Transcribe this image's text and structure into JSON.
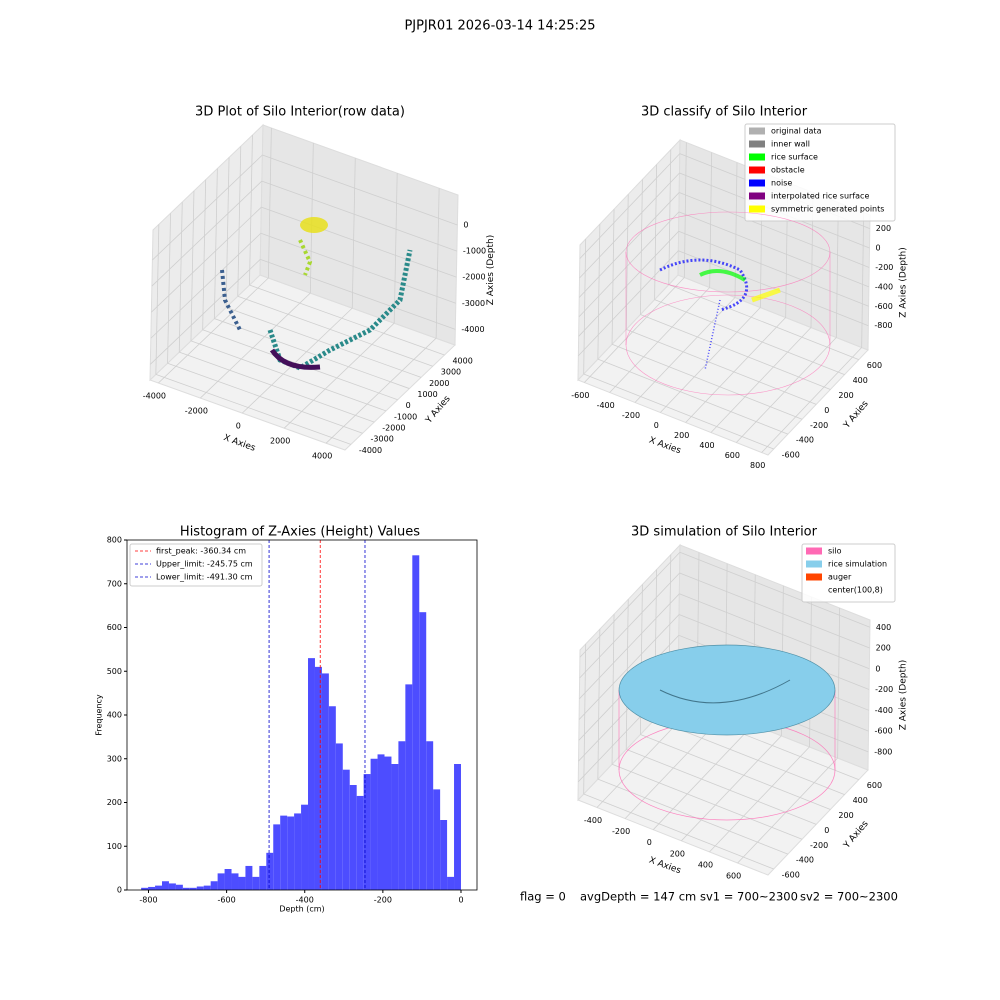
{
  "suptitle": "PJPJR01 2026-03-14 14:25:25",
  "chart_data": [
    {
      "type": "scatter3d",
      "title": "3D Plot of Silo Interior(row data)",
      "xlabel": "X Axies",
      "ylabel": "Y Axies",
      "zlabel": "Z Axies (Depth)",
      "xlim": [
        -4400,
        4900
      ],
      "ylim": [
        -4500,
        4900
      ],
      "zlim": [
        -4600,
        1150
      ],
      "xticks": [
        -4000,
        -2000,
        0,
        2000,
        4000
      ],
      "yticks": [
        -4000,
        -3000,
        -2000,
        -1000,
        0,
        1000,
        2000,
        3000,
        4000
      ],
      "zticks": [
        0,
        -1000,
        -2000,
        -3000,
        -4000
      ]
    },
    {
      "type": "scatter3d",
      "title": "3D classify of Silo Interior",
      "xlabel": "X Axies",
      "ylabel": "Y Axies",
      "zlabel": "Z Axies (Depth)",
      "xlim": [
        -650,
        850
      ],
      "ylim": [
        -680,
        730
      ],
      "zlim": [
        -1050,
        340
      ],
      "xticks": [
        -600,
        -400,
        -200,
        0,
        200,
        400,
        600,
        800
      ],
      "yticks": [
        -600,
        -400,
        -200,
        0,
        200,
        400,
        600
      ],
      "zticks": [
        200,
        0,
        -200,
        -400,
        -600,
        -800
      ],
      "legend": [
        {
          "name": "original data",
          "color": "#b0b0b0"
        },
        {
          "name": "inner wall",
          "color": "#808080"
        },
        {
          "name": "rice surface",
          "color": "#00ff00"
        },
        {
          "name": "obstacle",
          "color": "#ff0000"
        },
        {
          "name": "noise",
          "color": "#0000ff"
        },
        {
          "name": "interpolated rice surface",
          "color": "#800080"
        },
        {
          "name": "symmetric generated points",
          "color": "#ffff00"
        }
      ]
    },
    {
      "type": "histogram",
      "title": "Histogram of Z-Axies (Height) Values",
      "xlabel": "Depth (cm)",
      "ylabel": "Frequency",
      "xlim": [
        -855,
        41
      ],
      "ylim": [
        0,
        800
      ],
      "xticks": [
        -800,
        -600,
        -400,
        -200,
        0
      ],
      "yticks": [
        0,
        100,
        200,
        300,
        400,
        500,
        600,
        700,
        800
      ],
      "color": "#4d4dff",
      "bins": [
        -818.8,
        -801.0,
        -783.2,
        -765.4,
        -747.6,
        -729.8,
        -712.0,
        -694.2,
        -676.4,
        -658.6,
        -640.8,
        -623.0,
        -605.2,
        -587.4,
        -569.6,
        -551.8,
        -534.0,
        -516.2,
        -498.4,
        -480.6,
        -462.8,
        -445.0,
        -427.2,
        -409.4,
        -391.6,
        -373.8,
        -356.0,
        -338.2,
        -320.4,
        -302.6,
        -284.8,
        -267.0,
        -249.2,
        -231.4,
        -213.6,
        -195.8,
        -178.0,
        -160.2,
        -142.4,
        -124.6,
        -106.8,
        -89.0,
        -71.2,
        -53.4,
        -35.6,
        -17.8,
        0
      ],
      "values": [
        5,
        7,
        10,
        20,
        15,
        12,
        5,
        5,
        8,
        10,
        20,
        38,
        48,
        38,
        30,
        55,
        30,
        55,
        85,
        150,
        170,
        168,
        175,
        195,
        530,
        510,
        495,
        420,
        335,
        275,
        240,
        215,
        265,
        300,
        310,
        305,
        288,
        340,
        470,
        765,
        635,
        340,
        230,
        160,
        30,
        288
      ],
      "vlines": [
        {
          "label": "first_peak: -360.34 cm",
          "value": -360.34,
          "color": "#ff0000"
        },
        {
          "label": "Upper_limit: -245.75 cm",
          "value": -245.75,
          "color": "#0000cc"
        },
        {
          "label": "Lower_limit: -491.30 cm",
          "value": -491.3,
          "color": "#0000cc"
        }
      ]
    },
    {
      "type": "surface3d",
      "title": "3D simulation of Silo Interior",
      "xlabel": "X Axies",
      "ylabel": "Y Axies",
      "zlabel": "Z Axies (Depth)",
      "xlim": [
        -535,
        816
      ],
      "ylim": [
        -680,
        730
      ],
      "zlim": [
        -975,
        470
      ],
      "xticks": [
        -400,
        -200,
        0,
        200,
        400,
        600
      ],
      "yticks": [
        -600,
        -400,
        -200,
        0,
        200,
        400,
        600
      ],
      "zticks": [
        400,
        200,
        0,
        -200,
        -400,
        -600,
        -800
      ],
      "legend": [
        {
          "name": "silo",
          "color": "#ff69b4"
        },
        {
          "name": "rice simulation",
          "color": "#87ceeb"
        },
        {
          "name": "auger",
          "color": "#ff4500"
        },
        {
          "name": "center(100,8)",
          "color": "#ffffff"
        }
      ]
    }
  ],
  "footer": [
    "flag = 0",
    "avgDepth = 147 cm",
    "sv1 = 700~2300",
    "sv2 = 700~2300"
  ]
}
